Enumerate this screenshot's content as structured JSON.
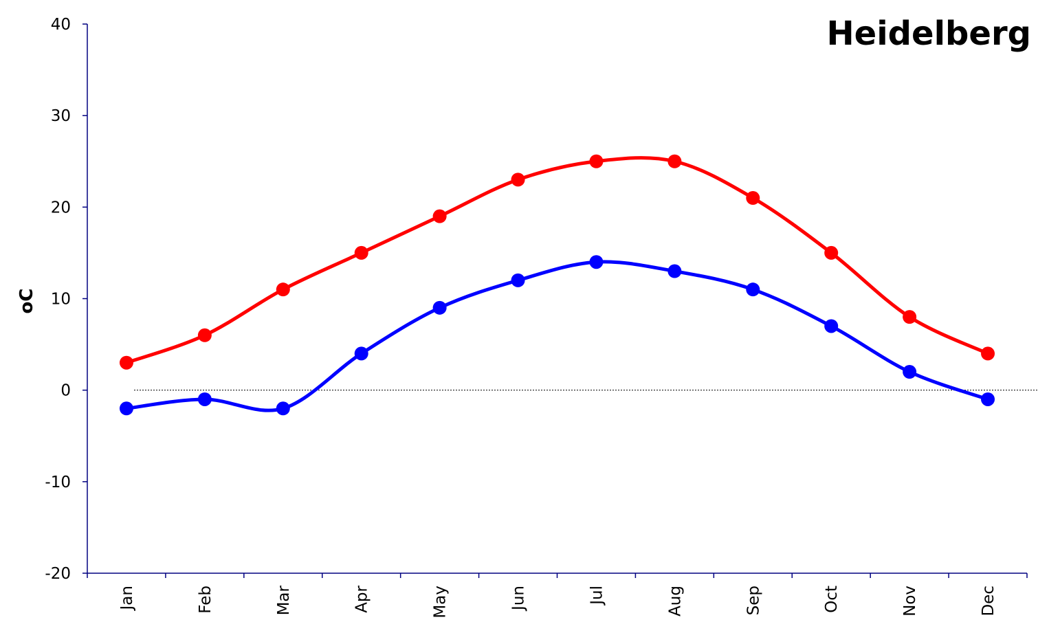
{
  "chart_data": {
    "type": "line",
    "title": "Heidelberg",
    "xlabel": "",
    "ylabel": "oC",
    "categories": [
      "Jan",
      "Feb",
      "Mar",
      "Apr",
      "May",
      "Jun",
      "Jul",
      "Aug",
      "Sep",
      "Oct",
      "Nov",
      "Dec"
    ],
    "ylim": [
      -20,
      40
    ],
    "yticks": [
      40,
      30,
      20,
      10,
      0,
      -10,
      -20
    ],
    "zero_line": true,
    "grid": false,
    "smooth": true,
    "series": [
      {
        "color": "#ff0000",
        "values": [
          3,
          6,
          11,
          15,
          19,
          23,
          25,
          25,
          21,
          15,
          8,
          4
        ]
      },
      {
        "color": "#0000ff",
        "values": [
          -2,
          -1,
          -2,
          4,
          9,
          12,
          14,
          13,
          11,
          7,
          2,
          -1
        ]
      }
    ]
  }
}
